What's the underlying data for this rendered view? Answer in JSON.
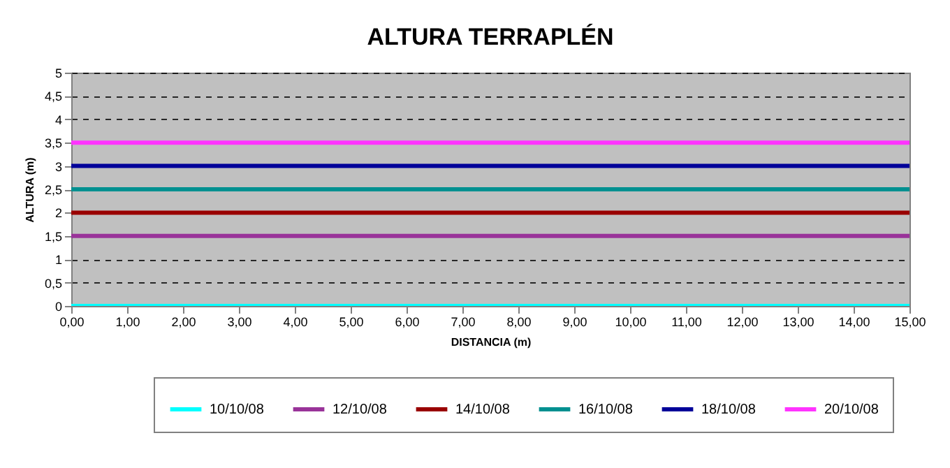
{
  "chart_data": {
    "type": "line",
    "title": "ALTURA TERRAPLÉN",
    "xlabel": "DISTANCIA (m)",
    "ylabel": "ALTURA (m)",
    "x": [
      0,
      15
    ],
    "series": [
      {
        "name": "10/10/08",
        "color": "#00ffff",
        "values": [
          0,
          0
        ]
      },
      {
        "name": "12/10/08",
        "color": "#993399",
        "values": [
          1.5,
          1.5
        ]
      },
      {
        "name": "14/10/08",
        "color": "#990000",
        "values": [
          2,
          2
        ]
      },
      {
        "name": "16/10/08",
        "color": "#009090",
        "values": [
          2.5,
          2.5
        ]
      },
      {
        "name": "18/10/08",
        "color": "#000099",
        "values": [
          3,
          3
        ]
      },
      {
        "name": "20/10/08",
        "color": "#ff33ff",
        "values": [
          3.5,
          3.5
        ]
      }
    ],
    "xlim": [
      0,
      15
    ],
    "xticks": [
      {
        "value": 0,
        "label": "0,00"
      },
      {
        "value": 1,
        "label": "1,00"
      },
      {
        "value": 2,
        "label": "2,00"
      },
      {
        "value": 3,
        "label": "3,00"
      },
      {
        "value": 4,
        "label": "4,00"
      },
      {
        "value": 5,
        "label": "5,00"
      },
      {
        "value": 6,
        "label": "6,00"
      },
      {
        "value": 7,
        "label": "7,00"
      },
      {
        "value": 8,
        "label": "8,00"
      },
      {
        "value": 9,
        "label": "9,00"
      },
      {
        "value": 10,
        "label": "10,00"
      },
      {
        "value": 11,
        "label": "11,00"
      },
      {
        "value": 12,
        "label": "12,00"
      },
      {
        "value": 13,
        "label": "13,00"
      },
      {
        "value": 14,
        "label": "14,00"
      },
      {
        "value": 15,
        "label": "15,00"
      }
    ],
    "ylim": [
      0,
      5
    ],
    "yticks": [
      0,
      {
        "value": 0.5,
        "label": "0,5"
      },
      1,
      {
        "value": 1.5,
        "label": "1,5"
      },
      2,
      {
        "value": 2.5,
        "label": "2,5"
      },
      3,
      {
        "value": 3.5,
        "label": "3,5"
      },
      4,
      {
        "value": 4.5,
        "label": "4,5"
      },
      5
    ],
    "grid": "y",
    "line_style": "solid",
    "marker": "none",
    "legend": "bottom"
  }
}
